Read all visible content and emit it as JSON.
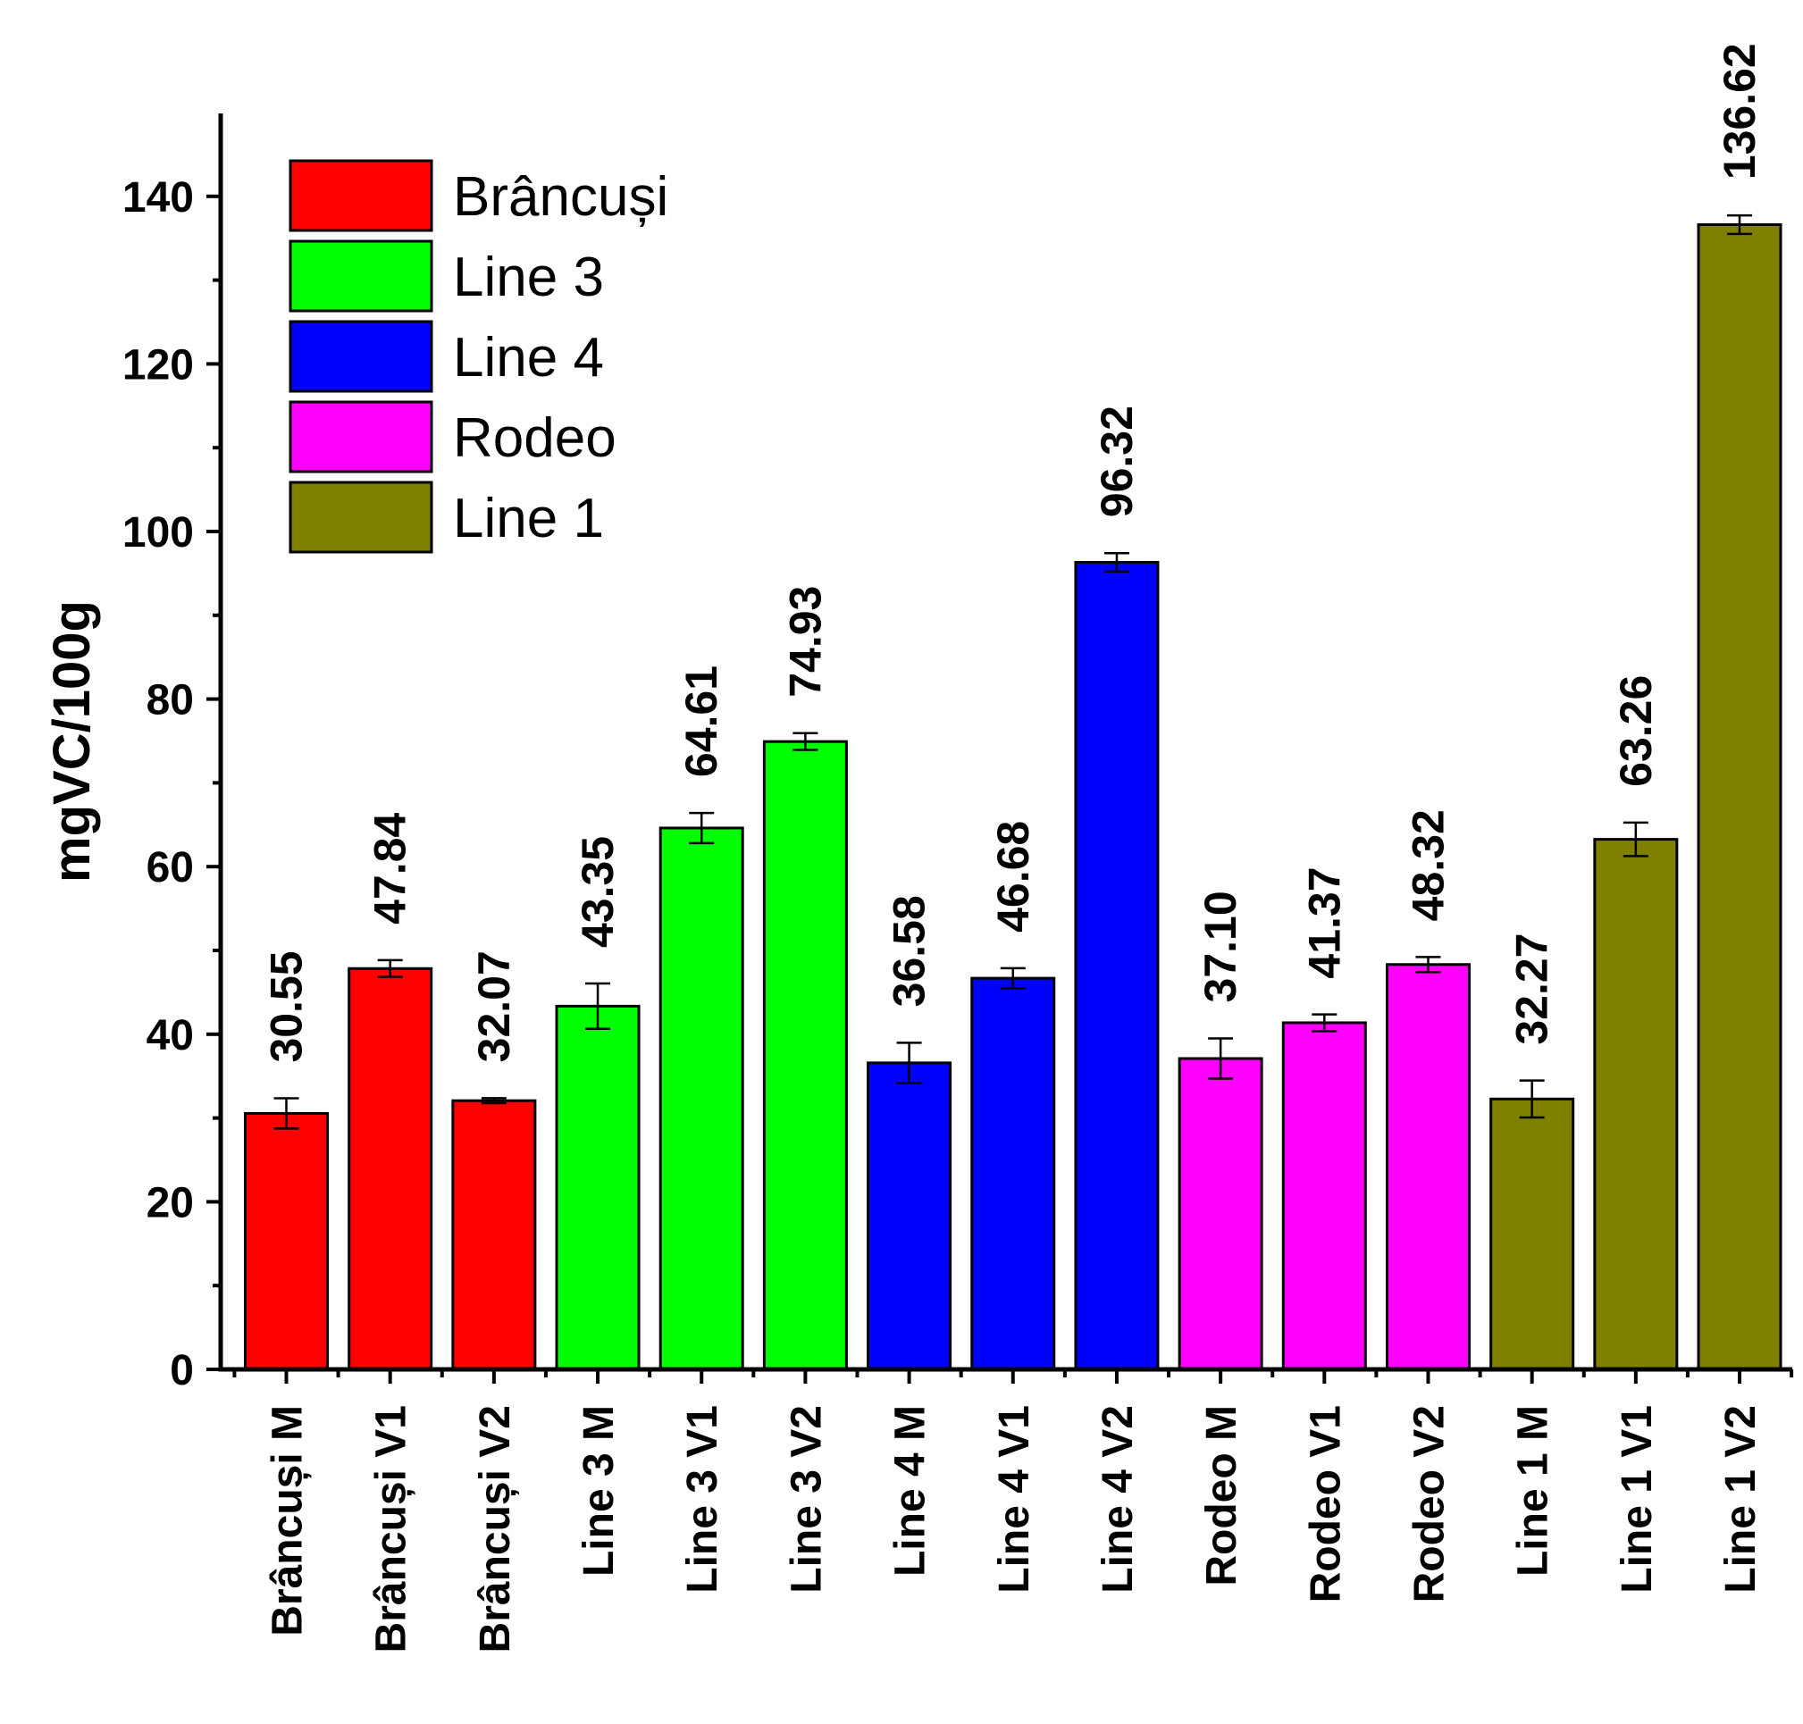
{
  "chart_data": {
    "type": "bar",
    "title": "",
    "xlabel": "",
    "ylabel": "mgVC/100g",
    "ylim": [
      0,
      150
    ],
    "yticks": [
      0,
      20,
      40,
      60,
      80,
      100,
      120,
      140
    ],
    "ytick_labels": [
      "0",
      "20",
      "40",
      "60",
      "80",
      "100",
      "120",
      "140"
    ],
    "legend_position": "top-left",
    "legend": [
      {
        "name": "Brâncuși",
        "color": "#ff0000"
      },
      {
        "name": "Line 3",
        "color": "#00ff00"
      },
      {
        "name": "Line 4",
        "color": "#0000ff"
      },
      {
        "name": "Rodeo",
        "color": "#ff00ff"
      },
      {
        "name": "Line 1",
        "color": "#808000"
      }
    ],
    "categories": [
      "Brâncuși M",
      "Brâncuși V1",
      "Brâncuși V2",
      "Line 3 M",
      "Line 3 V1",
      "Line 3 V2",
      "Line 4 M",
      "Line 4 V1",
      "Line 4 V2",
      "Rodeo M",
      "Rodeo V1",
      "Rodeo V2",
      "Line 1 M",
      "Line 1 V1",
      "Line 1 V2"
    ],
    "values": [
      30.55,
      47.84,
      32.07,
      43.35,
      64.61,
      74.93,
      36.58,
      46.68,
      96.32,
      37.1,
      41.37,
      48.32,
      32.27,
      63.26,
      136.62
    ],
    "value_labels": [
      "30.55",
      "47.84",
      "32.07",
      "43.35",
      "64.61",
      "74.93",
      "36.58",
      "46.68",
      "96.32",
      "37.10",
      "41.37",
      "48.32",
      "32.27",
      "63.26",
      "136.62"
    ],
    "errors": [
      1.8,
      1.0,
      0.3,
      2.7,
      1.8,
      1.0,
      2.4,
      1.2,
      1.1,
      2.4,
      1.0,
      0.9,
      2.2,
      2.0,
      1.1
    ],
    "group_of_bar": [
      0,
      0,
      0,
      1,
      1,
      1,
      2,
      2,
      2,
      3,
      3,
      3,
      4,
      4,
      4
    ]
  }
}
